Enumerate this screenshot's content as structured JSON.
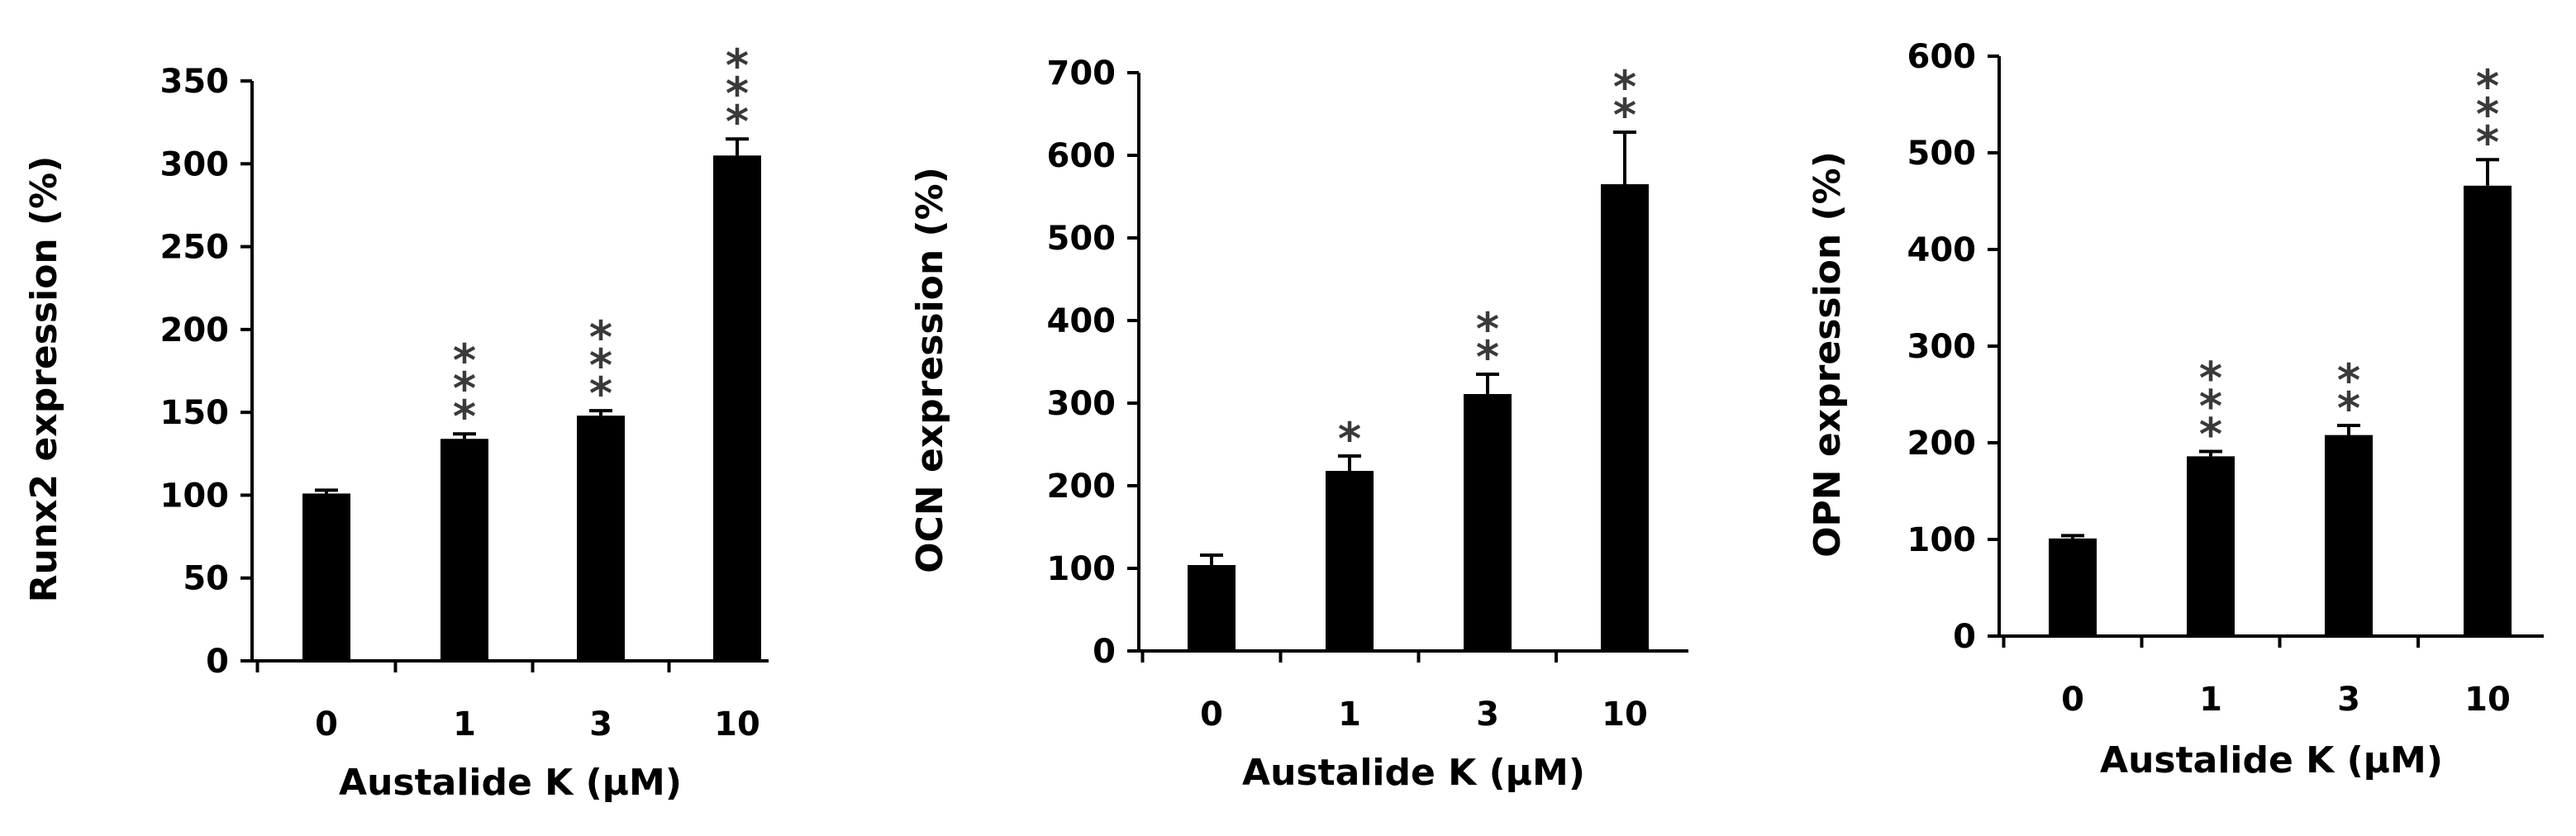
{
  "chart_data": [
    {
      "type": "bar",
      "xlabel": "Austalide K (µM)",
      "ylabel": "Runx2 expression (%)",
      "categories": [
        "0",
        "1",
        "3",
        "10"
      ],
      "values": [
        101,
        134,
        148,
        305
      ],
      "errors": [
        2,
        3,
        3,
        10
      ],
      "significance": [
        "",
        "***",
        "***",
        "***"
      ],
      "ylim": [
        0,
        350
      ],
      "yticks": [
        "0",
        "50",
        "100",
        "150",
        "200",
        "250",
        "300",
        "350"
      ],
      "grid": false,
      "bar_color": "#000000"
    },
    {
      "type": "bar",
      "xlabel": "Austalide K (µM)",
      "ylabel": "OCN expression (%)",
      "categories": [
        "0",
        "1",
        "3",
        "10"
      ],
      "values": [
        104,
        218,
        311,
        565
      ],
      "errors": [
        12,
        18,
        24,
        63
      ],
      "significance": [
        "",
        "*",
        "**",
        "**"
      ],
      "ylim": [
        0,
        700
      ],
      "yticks": [
        "0",
        "100",
        "200",
        "300",
        "400",
        "500",
        "600",
        "700"
      ],
      "grid": false,
      "bar_color": "#000000"
    },
    {
      "type": "bar",
      "xlabel": "Austalide K (µM)",
      "ylabel": "OPN expression (%)",
      "categories": [
        "0",
        "1",
        "3",
        "10"
      ],
      "values": [
        101,
        186,
        208,
        466
      ],
      "errors": [
        3,
        5,
        10,
        27
      ],
      "significance": [
        "",
        "***",
        "**",
        "***"
      ],
      "ylim": [
        0,
        600
      ],
      "yticks": [
        "0",
        "100",
        "200",
        "300",
        "400",
        "500",
        "600"
      ],
      "grid": false,
      "bar_color": "#000000"
    }
  ]
}
